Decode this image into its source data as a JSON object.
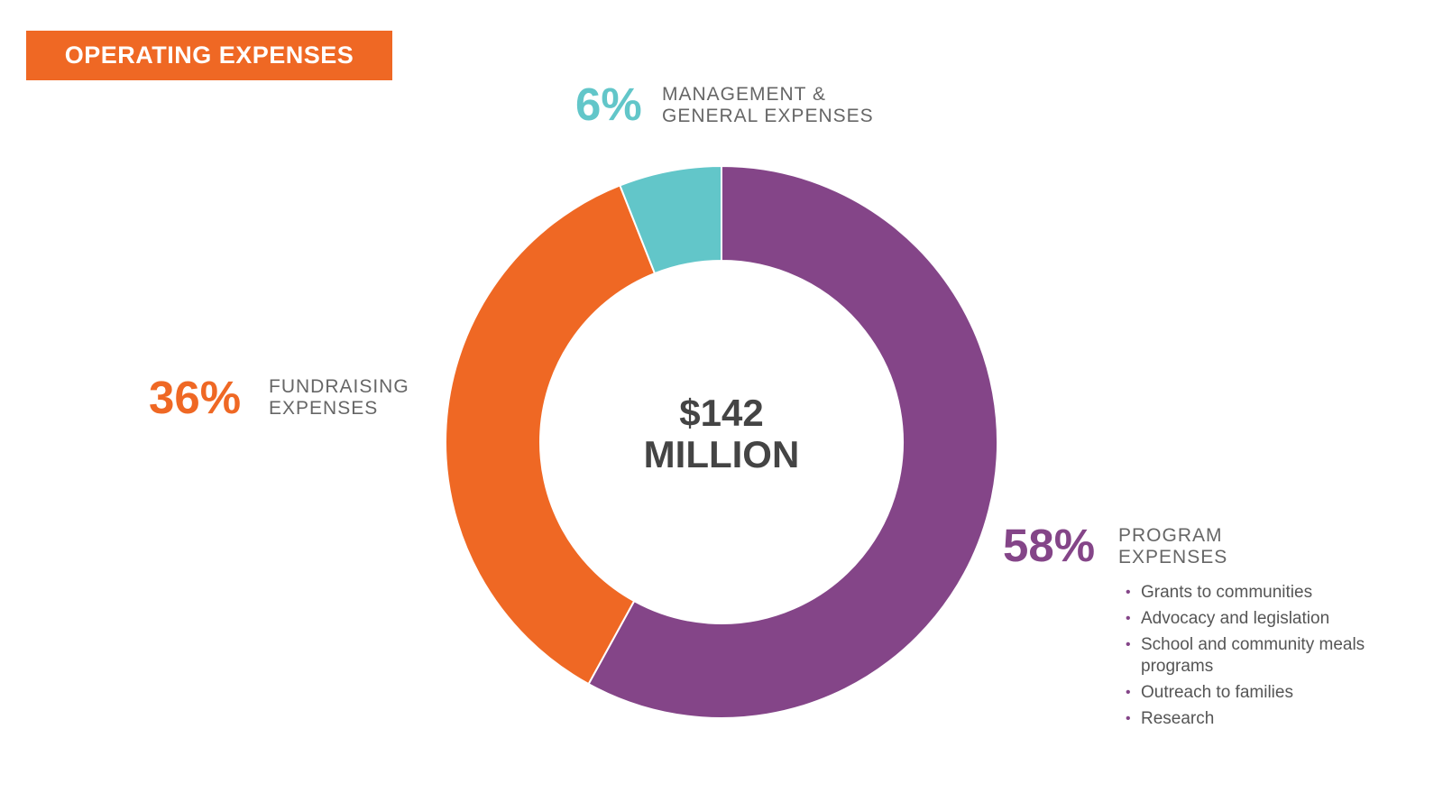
{
  "title": "OPERATING EXPENSES",
  "colors": {
    "title_bg": "#ef6824",
    "program": "#844588",
    "fundraising": "#ef6824",
    "management": "#62c6c9"
  },
  "center": {
    "line1": "$142",
    "line2": "MILLION"
  },
  "labels": {
    "management": {
      "pct": "6%",
      "line1": "MANAGEMENT &",
      "line2": "GENERAL EXPENSES"
    },
    "fundraising": {
      "pct": "36%",
      "line1": "FUNDRAISING",
      "line2": "EXPENSES"
    },
    "program": {
      "pct": "58%",
      "line1": "PROGRAM",
      "line2": "EXPENSES"
    }
  },
  "program_items": [
    "Grants to communities",
    "Advocacy and legislation",
    "School and community meals programs",
    "Outreach to families",
    "Research"
  ],
  "chart_data": {
    "type": "pie",
    "donut": true,
    "total": "$142 MILLION",
    "series": [
      {
        "name": "PROGRAM EXPENSES",
        "value": 58,
        "color": "#844588"
      },
      {
        "name": "FUNDRAISING EXPENSES",
        "value": 36,
        "color": "#ef6824"
      },
      {
        "name": "MANAGEMENT & GENERAL EXPENSES",
        "value": 6,
        "color": "#62c6c9"
      }
    ]
  }
}
